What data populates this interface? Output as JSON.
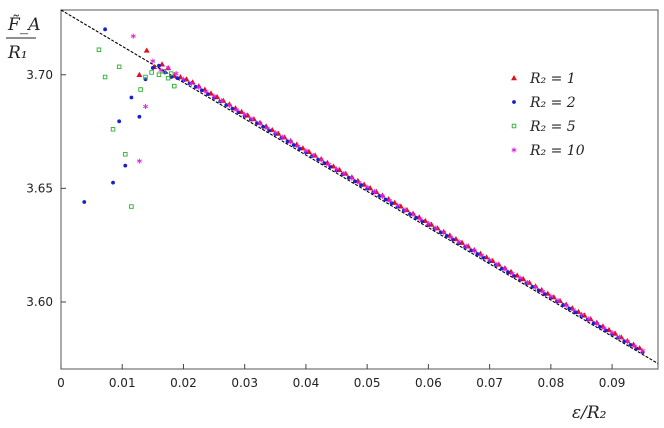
{
  "chart_data": {
    "type": "scatter",
    "title": "",
    "xlabel": "ε/R₂",
    "ylabel_numerator": "F̃_A",
    "ylabel_denominator": "R₁",
    "xlim": [
      0,
      0.0975
    ],
    "ylim": [
      3.5705,
      3.7285
    ],
    "x_ticks": [
      0,
      0.01,
      0.02,
      0.03,
      0.04,
      0.05,
      0.06,
      0.07,
      0.08,
      0.09
    ],
    "x_tick_labels": [
      "0",
      "0.01",
      "0.02",
      "0.03",
      "0.04",
      "0.05",
      "0.06",
      "0.07",
      "0.08",
      "0.09"
    ],
    "y_ticks": [
      3.6,
      3.65,
      3.7
    ],
    "y_tick_labels": [
      "3.60",
      "3.65",
      "3.70"
    ],
    "grid": false,
    "legend": "right",
    "fit_line": {
      "x": [
        0,
        0.0975
      ],
      "y": [
        3.7285,
        3.5729
      ],
      "style": "dashed",
      "color": "#000000"
    },
    "series": [
      {
        "name": "R₂ = 1",
        "marker": "triangle",
        "color": "#e0101e",
        "x": [
          0.0128,
          0.014,
          0.0152,
          0.0165,
          0.0175,
          0.0185,
          0.0195,
          0.0205,
          0.0215,
          0.0225,
          0.0235,
          0.0245,
          0.0255,
          0.0265,
          0.0275,
          0.0285,
          0.0295,
          0.0305,
          0.0315,
          0.0325,
          0.0335,
          0.0345,
          0.0355,
          0.0365,
          0.0375,
          0.0385,
          0.0395,
          0.0405,
          0.0415,
          0.0425,
          0.0435,
          0.0445,
          0.0455,
          0.0465,
          0.0475,
          0.0485,
          0.0495,
          0.0505,
          0.0515,
          0.0525,
          0.0535,
          0.0545,
          0.0555,
          0.0565,
          0.0575,
          0.0585,
          0.0595,
          0.0605,
          0.0615,
          0.0625,
          0.0635,
          0.0645,
          0.0655,
          0.0665,
          0.0675,
          0.0685,
          0.0695,
          0.0705,
          0.0715,
          0.0725,
          0.0735,
          0.0745,
          0.0755,
          0.0765,
          0.0775,
          0.0785,
          0.0795,
          0.0805,
          0.0815,
          0.0825,
          0.0835,
          0.0845,
          0.0855,
          0.0865,
          0.0875,
          0.0885,
          0.0895,
          0.0905,
          0.0915,
          0.0925,
          0.0935,
          0.0945
        ],
        "y": [
          3.7,
          3.7107,
          3.7035,
          3.7046,
          3.703,
          3.6995,
          3.699,
          3.698,
          3.6967,
          3.695,
          3.6935,
          3.6918,
          3.6902,
          3.6886,
          3.687,
          3.6853,
          3.6837,
          3.6821,
          3.6805,
          3.6789,
          3.6773,
          3.6757,
          3.6741,
          3.6725,
          3.6709,
          3.6693,
          3.6677,
          3.6661,
          3.6645,
          3.6629,
          3.6613,
          3.6597,
          3.6581,
          3.6565,
          3.6549,
          3.6533,
          3.6517,
          3.6501,
          3.6485,
          3.6469,
          3.6453,
          3.6437,
          3.6421,
          3.6405,
          3.6389,
          3.6373,
          3.6357,
          3.6341,
          3.6325,
          3.6309,
          3.6293,
          3.6277,
          3.6261,
          3.6245,
          3.6229,
          3.6213,
          3.6197,
          3.6181,
          3.6165,
          3.6149,
          3.6133,
          3.6117,
          3.6101,
          3.6085,
          3.6069,
          3.6053,
          3.6037,
          3.6021,
          3.6005,
          3.5989,
          3.5973,
          3.5957,
          3.5941,
          3.5925,
          3.5909,
          3.5893,
          3.5877,
          3.5861,
          3.5845,
          3.5829,
          3.5813,
          3.5797
        ]
      },
      {
        "name": "R₂ = 2",
        "marker": "dot",
        "color": "#1520d0",
        "x": [
          0.0038,
          0.0072,
          0.0085,
          0.0095,
          0.0105,
          0.0115,
          0.0128,
          0.0138,
          0.015,
          0.016,
          0.017,
          0.018,
          0.019,
          0.02,
          0.021,
          0.022,
          0.023,
          0.024,
          0.025,
          0.026,
          0.027,
          0.028,
          0.029,
          0.03,
          0.031,
          0.032,
          0.033,
          0.034,
          0.035,
          0.036,
          0.037,
          0.038,
          0.039,
          0.04,
          0.041,
          0.042,
          0.043,
          0.044,
          0.045,
          0.046,
          0.047,
          0.048,
          0.049,
          0.05,
          0.051,
          0.052,
          0.053,
          0.054,
          0.055,
          0.056,
          0.057,
          0.058,
          0.059,
          0.06,
          0.061,
          0.062,
          0.063,
          0.064,
          0.065,
          0.066,
          0.067,
          0.068,
          0.069,
          0.07,
          0.071,
          0.072,
          0.073,
          0.074,
          0.075,
          0.076,
          0.077,
          0.078,
          0.079,
          0.08,
          0.081,
          0.082,
          0.083,
          0.084,
          0.085,
          0.086,
          0.087,
          0.088,
          0.089,
          0.09,
          0.091,
          0.092,
          0.093,
          0.094,
          0.095
        ],
        "y": [
          3.644,
          3.72,
          3.6525,
          3.6795,
          3.66,
          3.69,
          3.6815,
          3.698,
          3.703,
          3.704,
          3.701,
          3.699,
          3.6985,
          3.6975,
          3.6962,
          3.6947,
          3.6931,
          3.6915,
          3.6899,
          3.6883,
          3.6867,
          3.6851,
          3.6835,
          3.6819,
          3.6803,
          3.6787,
          3.6771,
          3.6755,
          3.6739,
          3.6723,
          3.6707,
          3.6691,
          3.6675,
          3.6659,
          3.6643,
          3.6627,
          3.6611,
          3.6595,
          3.6579,
          3.6563,
          3.6547,
          3.6531,
          3.6515,
          3.6499,
          3.6483,
          3.6467,
          3.6451,
          3.6435,
          3.6419,
          3.6403,
          3.6387,
          3.6371,
          3.6355,
          3.6339,
          3.6323,
          3.6307,
          3.6291,
          3.6275,
          3.6259,
          3.6243,
          3.6227,
          3.6211,
          3.6195,
          3.6179,
          3.6163,
          3.6147,
          3.6131,
          3.6115,
          3.6099,
          3.6083,
          3.6067,
          3.6051,
          3.6035,
          3.6019,
          3.6003,
          3.5987,
          3.5971,
          3.5955,
          3.5939,
          3.5923,
          3.5907,
          3.5891,
          3.5875,
          3.5859,
          3.5843,
          3.5827,
          3.5811,
          3.5795,
          3.5779
        ]
      },
      {
        "name": "R₂ = 5",
        "marker": "square",
        "color": "#2ab02a",
        "x": [
          0.0062,
          0.0072,
          0.0085,
          0.0095,
          0.0105,
          0.0115,
          0.013,
          0.0138,
          0.0148,
          0.016,
          0.0168,
          0.0175,
          0.018,
          0.0185
        ],
        "y": [
          3.711,
          3.699,
          3.676,
          3.7035,
          3.665,
          3.642,
          3.6935,
          3.699,
          3.701,
          3.7,
          3.7015,
          3.6985,
          3.7005,
          3.695
        ]
      },
      {
        "name": "R₂ = 10",
        "marker": "asterisk",
        "color": "#e020e0",
        "x": [
          0.0118,
          0.0128,
          0.0138,
          0.015,
          0.0163,
          0.0175,
          0.0188,
          0.02,
          0.0213,
          0.0225,
          0.0237,
          0.025,
          0.0262,
          0.0275,
          0.0287,
          0.03,
          0.0312,
          0.0325,
          0.0337,
          0.035,
          0.0362,
          0.0375,
          0.0387,
          0.04,
          0.0412,
          0.0425,
          0.0437,
          0.045,
          0.0462,
          0.0475,
          0.0487,
          0.05,
          0.0512,
          0.0525,
          0.0537,
          0.055,
          0.0562,
          0.0575,
          0.0587,
          0.06,
          0.0612,
          0.0625,
          0.0637,
          0.065,
          0.0662,
          0.0675,
          0.0687,
          0.07,
          0.0712,
          0.0725,
          0.0737,
          0.075,
          0.0762,
          0.0775,
          0.0787,
          0.08,
          0.0812,
          0.0825,
          0.0837,
          0.085,
          0.0862,
          0.0875,
          0.0887,
          0.09,
          0.0912,
          0.0925,
          0.0937,
          0.095
        ],
        "y": [
          3.717,
          3.662,
          3.686,
          3.706,
          3.702,
          3.703,
          3.7005,
          3.698,
          3.6962,
          3.6945,
          3.6925,
          3.6905,
          3.6885,
          3.6865,
          3.6845,
          3.6825,
          3.6805,
          3.6785,
          3.6765,
          3.6745,
          3.6725,
          3.6705,
          3.6685,
          3.6665,
          3.6645,
          3.6625,
          3.6605,
          3.6585,
          3.6565,
          3.6545,
          3.6525,
          3.6505,
          3.6485,
          3.6465,
          3.6445,
          3.6425,
          3.6405,
          3.6385,
          3.6365,
          3.6345,
          3.6325,
          3.6305,
          3.6285,
          3.6265,
          3.6245,
          3.6225,
          3.6205,
          3.6185,
          3.6165,
          3.6145,
          3.6125,
          3.6105,
          3.6085,
          3.6065,
          3.6045,
          3.6025,
          3.6005,
          3.5985,
          3.5965,
          3.5945,
          3.5925,
          3.5905,
          3.5885,
          3.5865,
          3.5845,
          3.5825,
          3.5805,
          3.5785
        ]
      }
    ]
  }
}
